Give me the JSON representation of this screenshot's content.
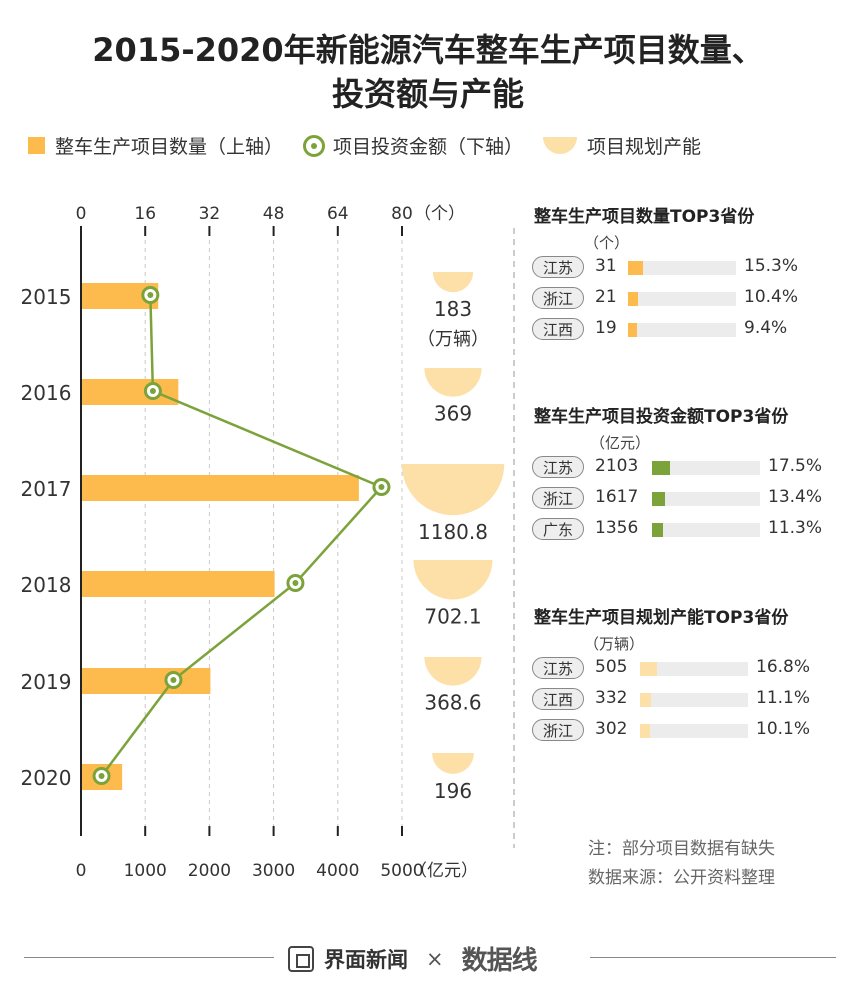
{
  "title": {
    "line1": "2015-2020年新能源汽车整车生产项目数量、",
    "line2": "投资额与产能"
  },
  "legend": [
    {
      "label": "整车生产项目数量（上轴）",
      "icon": "bar-swatch",
      "color": "#FDBB4E"
    },
    {
      "label": "项目投资金额（下轴）",
      "icon": "dot-swatch",
      "color": "#7BA33A"
    },
    {
      "label": "项目规划产能",
      "icon": "bowl-swatch",
      "color": "#FDDFA8"
    }
  ],
  "chart_data": {
    "type": "bar",
    "categories": [
      "2015",
      "2016",
      "2017",
      "2018",
      "2019",
      "2020"
    ],
    "series": [
      {
        "name": "整车生产项目数量",
        "axis": "top",
        "values": [
          19,
          24,
          69,
          48,
          32,
          10
        ],
        "color": "#FDBB4E"
      },
      {
        "name": "项目投资金额",
        "axis": "bottom",
        "type": "line",
        "values": [
          1080,
          1120,
          4680,
          3340,
          1440,
          320
        ],
        "color": "#7BA33A"
      },
      {
        "name": "项目规划产能",
        "type": "bowl",
        "values": [
          183,
          369,
          1180.8,
          702.1,
          368.6,
          196
        ],
        "labels": [
          "183",
          "369",
          "1180.8",
          "702.1",
          "368.6",
          "196"
        ],
        "color": "#FDDFA8"
      }
    ],
    "top_axis": {
      "ticks": [
        "0",
        "16",
        "32",
        "48",
        "64",
        "80"
      ],
      "range": [
        0,
        80
      ],
      "unit": "（个）"
    },
    "bottom_axis": {
      "ticks": [
        "0",
        "1000",
        "2000",
        "3000",
        "4000",
        "5000"
      ],
      "range": [
        0,
        5000
      ],
      "unit": "（亿元）"
    },
    "capacity_unit": "（万辆）",
    "grid": true
  },
  "side_panels": [
    {
      "title": "整车生产项目数量TOP3省份",
      "unit": "（个）",
      "color": "#FDBB4E",
      "rows": [
        {
          "province": "江苏",
          "value": "31",
          "pct": "15.3%",
          "share": 0.153
        },
        {
          "province": "浙江",
          "value": "21",
          "pct": "10.4%",
          "share": 0.104
        },
        {
          "province": "江西",
          "value": "19",
          "pct": "9.4%",
          "share": 0.094
        }
      ]
    },
    {
      "title": "整车生产项目投资金额TOP3省份",
      "unit": "（亿元）",
      "color": "#7BA33A",
      "rows": [
        {
          "province": "江苏",
          "value": "2103",
          "pct": "17.5%",
          "share": 0.175
        },
        {
          "province": "浙江",
          "value": "1617",
          "pct": "13.4%",
          "share": 0.134
        },
        {
          "province": "广东",
          "value": "1356",
          "pct": "11.3%",
          "share": 0.113
        }
      ]
    },
    {
      "title": "整车生产项目规划产能TOP3省份",
      "unit": "（万辆）",
      "color": "#FDDFA8",
      "rows": [
        {
          "province": "江苏",
          "value": "505",
          "pct": "16.8%",
          "share": 0.168
        },
        {
          "province": "江西",
          "value": "332",
          "pct": "11.1%",
          "share": 0.111
        },
        {
          "province": "浙江",
          "value": "302",
          "pct": "10.1%",
          "share": 0.101
        }
      ]
    }
  ],
  "notes": {
    "note": "注：部分项目数据有缺失",
    "source": "数据来源：公开资料整理"
  },
  "footer": {
    "brand": "界面新闻",
    "times": "×",
    "partner": "数据线"
  }
}
